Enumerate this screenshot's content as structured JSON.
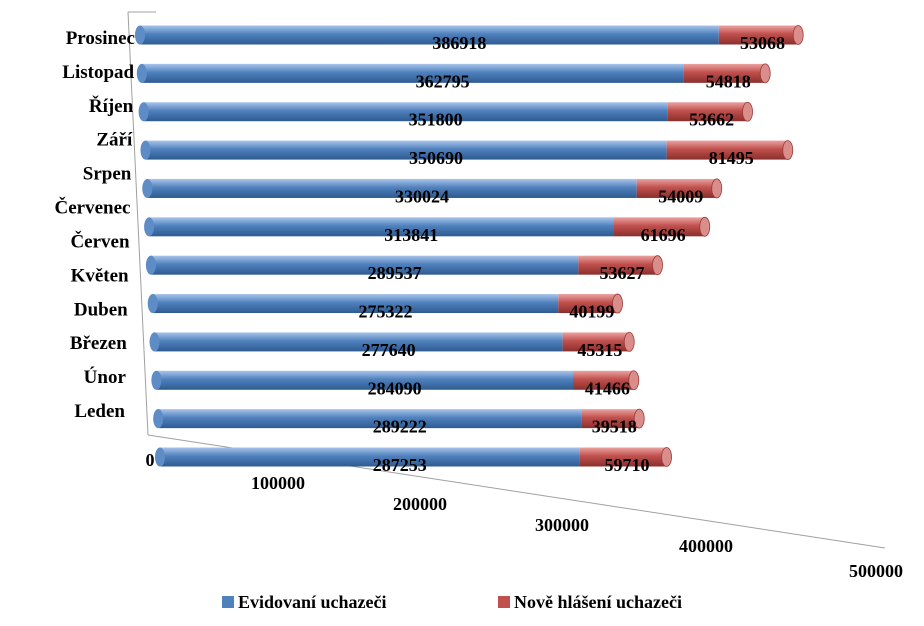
{
  "chart_data": {
    "type": "bar",
    "orientation": "horizontal",
    "stacked": true,
    "style": "3d-cylinder",
    "categories": [
      "Leden",
      "Únor",
      "Březen",
      "Duben",
      "Květen",
      "Červen",
      "Červenec",
      "Srpen",
      "Září",
      "Říjen",
      "Listopad",
      "Prosinec"
    ],
    "value_labels": {
      "evidovani": [
        "287253",
        "289222",
        "284090",
        "277640",
        "275322",
        "289537",
        "313841",
        "330024",
        "350690",
        "351800",
        "362795",
        "386918"
      ],
      "nove": [
        "59710",
        "39518",
        "41466",
        "45315",
        "40199",
        "53627",
        "61696",
        "54009",
        "81495",
        "53662",
        "54818",
        "53068"
      ]
    },
    "series": [
      {
        "name": "Evidovaní uchazeči",
        "values": [
          287253,
          289222,
          284090,
          277640,
          275322,
          289537,
          313841,
          330024,
          350690,
          351800,
          362795,
          386918
        ],
        "color": "#4f81bd"
      },
      {
        "name": "Nově hlášení uchazeči",
        "values": [
          59710,
          39518,
          41466,
          45315,
          40199,
          53627,
          61696,
          54009,
          81495,
          53662,
          54818,
          53068
        ],
        "color": "#c0504d"
      }
    ],
    "x_ticks": [
      "0",
      "100000",
      "200000",
      "300000",
      "400000",
      "500000"
    ],
    "xlim": [
      0,
      500000
    ],
    "legend": "bottom",
    "grid": false
  }
}
